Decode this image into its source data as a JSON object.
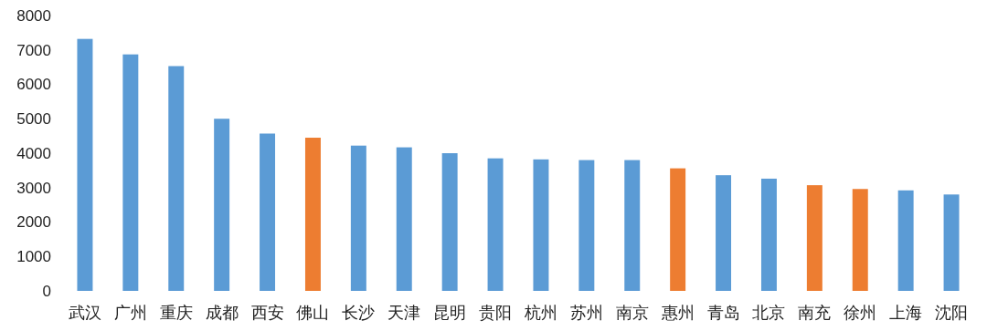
{
  "chart_data": {
    "type": "bar",
    "categories": [
      "武汉",
      "广州",
      "重庆",
      "成都",
      "西安",
      "佛山",
      "长沙",
      "天津",
      "昆明",
      "贵阳",
      "杭州",
      "苏州",
      "南京",
      "惠州",
      "青岛",
      "北京",
      "南充",
      "徐州",
      "上海",
      "沈阳"
    ],
    "values": [
      7320,
      6870,
      6530,
      5000,
      4570,
      4450,
      4220,
      4170,
      4000,
      3850,
      3820,
      3800,
      3800,
      3560,
      3360,
      3260,
      3070,
      2960,
      2920,
      2800
    ],
    "colors": [
      "#5b9bd5",
      "#5b9bd5",
      "#5b9bd5",
      "#5b9bd5",
      "#5b9bd5",
      "#ed7d31",
      "#5b9bd5",
      "#5b9bd5",
      "#5b9bd5",
      "#5b9bd5",
      "#5b9bd5",
      "#5b9bd5",
      "#5b9bd5",
      "#ed7d31",
      "#5b9bd5",
      "#5b9bd5",
      "#ed7d31",
      "#ed7d31",
      "#5b9bd5",
      "#5b9bd5"
    ],
    "ylim": [
      0,
      8000
    ],
    "yticks": [
      0,
      1000,
      2000,
      3000,
      4000,
      5000,
      6000,
      7000,
      8000
    ],
    "grid": false
  }
}
